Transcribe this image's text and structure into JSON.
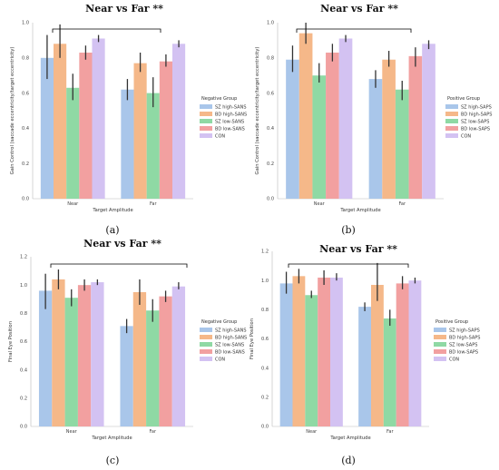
{
  "colors": {
    "series": [
      "#a9c6ea",
      "#f5b889",
      "#8fd9a4",
      "#f2a0a0",
      "#d3c2f2"
    ],
    "error_bar": "#333333",
    "axis": "#bbbbbb",
    "bracket": "#000000"
  },
  "chart_data": [
    {
      "type": "bar",
      "caption": "(a)",
      "title": "Near vs Far **",
      "xlabel": "Target Amplitude",
      "ylabel": "Gain Control (saccade eccentricity/target eccentricity)",
      "categories": [
        "Near",
        "Far"
      ],
      "ylim": [
        0,
        1.0
      ],
      "yticks": [
        "0.0",
        "0.2",
        "0.4",
        "0.6",
        "0.8",
        "1.0"
      ],
      "legend_title": "Negative Group",
      "legend_position": "right",
      "grid": false,
      "series": [
        {
          "name": "SZ high-SANS",
          "values": [
            0.8,
            0.62
          ],
          "err_low": [
            0.68,
            0.56
          ],
          "err_high": [
            0.93,
            0.68
          ]
        },
        {
          "name": "BD high-SANS",
          "values": [
            0.88,
            0.77
          ],
          "err_low": [
            0.8,
            0.72
          ],
          "err_high": [
            0.99,
            0.83
          ]
        },
        {
          "name": "SZ low-SANS",
          "values": [
            0.63,
            0.6
          ],
          "err_low": [
            0.56,
            0.52
          ],
          "err_high": [
            0.71,
            0.69
          ]
        },
        {
          "name": "BD low-SANS",
          "values": [
            0.83,
            0.78
          ],
          "err_low": [
            0.79,
            0.75
          ],
          "err_high": [
            0.87,
            0.82
          ]
        },
        {
          "name": "CON",
          "values": [
            0.91,
            0.88
          ],
          "err_low": [
            0.89,
            0.86
          ],
          "err_high": [
            0.93,
            0.9
          ]
        }
      ]
    },
    {
      "type": "bar",
      "caption": "(b)",
      "title": "Near vs Far **",
      "xlabel": "Target Amplitude",
      "ylabel": "Gain Control (saccade eccentricity/target eccentricity)",
      "categories": [
        "Near",
        "Far"
      ],
      "ylim": [
        0,
        1.0
      ],
      "yticks": [
        "0.0",
        "0.2",
        "0.4",
        "0.6",
        "0.8",
        "1.0"
      ],
      "legend_title": "Positive Group",
      "legend_position": "right",
      "grid": false,
      "series": [
        {
          "name": "SZ high-SAPS",
          "values": [
            0.79,
            0.68
          ],
          "err_low": [
            0.72,
            0.63
          ],
          "err_high": [
            0.87,
            0.73
          ]
        },
        {
          "name": "BD high-SAPS",
          "values": [
            0.94,
            0.79
          ],
          "err_low": [
            0.88,
            0.75
          ],
          "err_high": [
            1.0,
            0.84
          ]
        },
        {
          "name": "SZ low-SAPS",
          "values": [
            0.7,
            0.62
          ],
          "err_low": [
            0.66,
            0.56
          ],
          "err_high": [
            0.77,
            0.67
          ]
        },
        {
          "name": "BD low-SAPS",
          "values": [
            0.83,
            0.81
          ],
          "err_low": [
            0.78,
            0.75
          ],
          "err_high": [
            0.88,
            0.86
          ]
        },
        {
          "name": "CON",
          "values": [
            0.91,
            0.88
          ],
          "err_low": [
            0.89,
            0.85
          ],
          "err_high": [
            0.93,
            0.9
          ]
        }
      ]
    },
    {
      "type": "bar",
      "caption": "(c)",
      "title": "Near vs Far **",
      "xlabel": "Target Amplitude",
      "ylabel": "Final Eye Position",
      "categories": [
        "Near",
        "Far"
      ],
      "ylim": [
        0,
        1.2
      ],
      "yticks": [
        "0.0",
        "0.2",
        "0.4",
        "0.6",
        "0.8",
        "1.0",
        "1.2"
      ],
      "legend_title": "Negative Group",
      "legend_position": "right",
      "grid": false,
      "series": [
        {
          "name": "SZ high-SANS",
          "values": [
            0.96,
            0.71
          ],
          "err_low": [
            0.83,
            0.66
          ],
          "err_high": [
            1.08,
            0.76
          ]
        },
        {
          "name": "BD high-SANS",
          "values": [
            1.04,
            0.95
          ],
          "err_low": [
            0.97,
            0.86
          ],
          "err_high": [
            1.11,
            1.04
          ]
        },
        {
          "name": "SZ low-SANS",
          "values": [
            0.91,
            0.82
          ],
          "err_low": [
            0.85,
            0.74
          ],
          "err_high": [
            0.97,
            0.9
          ]
        },
        {
          "name": "BD low-SANS",
          "values": [
            1.0,
            0.92
          ],
          "err_low": [
            0.96,
            0.88
          ],
          "err_high": [
            1.04,
            0.96
          ]
        },
        {
          "name": "CON",
          "values": [
            1.02,
            0.99
          ],
          "err_low": [
            1.0,
            0.97
          ],
          "err_high": [
            1.04,
            1.02
          ]
        }
      ]
    },
    {
      "type": "bar",
      "caption": "(d)",
      "title": "Near vs Far **",
      "xlabel": "Target Amplitude",
      "ylabel": "Final Eye Position",
      "categories": [
        "Near",
        "Far"
      ],
      "ylim": [
        0,
        1.2
      ],
      "yticks": [
        "0.0",
        "0.2",
        "0.4",
        "0.6",
        "0.8",
        "1.0",
        "1.2"
      ],
      "legend_title": "Positive Group",
      "legend_position": "right",
      "grid": false,
      "series": [
        {
          "name": "SZ high-SAPS",
          "values": [
            0.98,
            0.82
          ],
          "err_low": [
            0.91,
            0.79
          ],
          "err_high": [
            1.06,
            0.85
          ]
        },
        {
          "name": "BD high-SAPS",
          "values": [
            1.03,
            0.97
          ],
          "err_low": [
            0.98,
            0.86
          ],
          "err_high": [
            1.08,
            1.12
          ]
        },
        {
          "name": "SZ low-SAPS",
          "values": [
            0.9,
            0.74
          ],
          "err_low": [
            0.88,
            0.69
          ],
          "err_high": [
            0.93,
            0.8
          ]
        },
        {
          "name": "BD low-SAPS",
          "values": [
            1.02,
            0.98
          ],
          "err_low": [
            0.97,
            0.94
          ],
          "err_high": [
            1.07,
            1.03
          ]
        },
        {
          "name": "CON",
          "values": [
            1.02,
            1.0
          ],
          "err_low": [
            1.0,
            0.98
          ],
          "err_high": [
            1.05,
            1.02
          ]
        }
      ]
    }
  ]
}
